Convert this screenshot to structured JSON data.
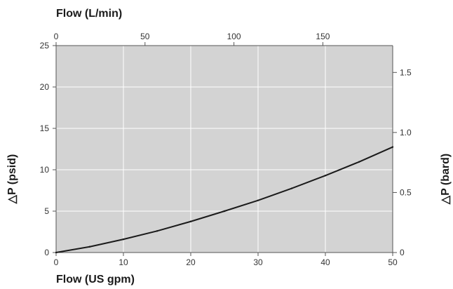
{
  "chart_data": {
    "type": "line",
    "x_bottom": {
      "label": "Flow (US gpm)",
      "range": [
        0,
        50
      ],
      "ticks": [
        "0",
        "10",
        "20",
        "30",
        "40",
        "50"
      ]
    },
    "x_top": {
      "label": "Flow (L/min)",
      "range": [
        0,
        189.27
      ],
      "ticks": [
        "0",
        "50",
        "100",
        "150"
      ]
    },
    "y_left": {
      "label": "△P (psid)",
      "range": [
        0,
        25
      ],
      "ticks": [
        "0",
        "5",
        "10",
        "15",
        "20",
        "25"
      ]
    },
    "y_right": {
      "label": "△P (bard)",
      "range": [
        0,
        1.7237
      ],
      "ticks": [
        "0",
        "0.5",
        "1.0",
        "1.5"
      ]
    },
    "grid": true,
    "series": [
      {
        "x": [
          0,
          5,
          10,
          15,
          20,
          25,
          30,
          35,
          40,
          45,
          50
        ],
        "y": [
          0,
          0.7,
          1.6,
          2.6,
          3.75,
          5.0,
          6.3,
          7.75,
          9.3,
          10.95,
          12.75
        ]
      }
    ],
    "colors": {
      "plot_background": "#d3d3d3",
      "grid": "#ffffff",
      "line": "#1a1a1a",
      "axis": "#555555"
    }
  }
}
